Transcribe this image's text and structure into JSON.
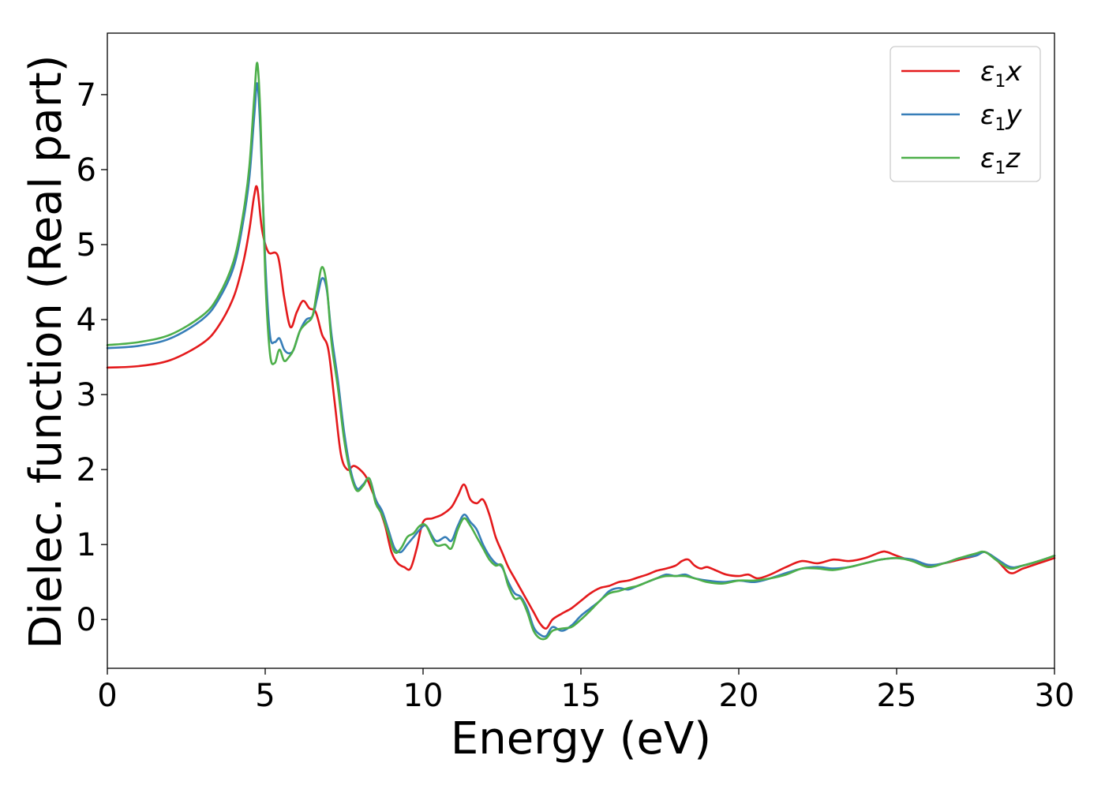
{
  "chart_data": {
    "type": "line",
    "title": "",
    "xlabel": "Energy (eV)",
    "ylabel": "Dielec. function (Real part)",
    "xlim": [
      0,
      30
    ],
    "ylim": [
      -0.65,
      7.82
    ],
    "xticks": [
      0,
      5,
      10,
      15,
      20,
      25,
      30
    ],
    "yticks": [
      0,
      1,
      2,
      3,
      4,
      5,
      6,
      7
    ],
    "grid": false,
    "legend_position": "top-right",
    "series": [
      {
        "name": "ε1x",
        "legend": {
          "symbol": "ε",
          "sub": "1",
          "var": "x"
        },
        "color": "#e41a1c",
        "x": [
          0,
          1,
          2,
          3,
          3.5,
          4,
          4.3,
          4.5,
          4.65,
          4.75,
          4.9,
          5.1,
          5.4,
          5.6,
          5.8,
          6.0,
          6.2,
          6.4,
          6.6,
          6.8,
          7.0,
          7.2,
          7.4,
          7.6,
          7.8,
          8.0,
          8.2,
          8.4,
          8.6,
          8.8,
          9.0,
          9.2,
          9.4,
          9.6,
          9.8,
          10.0,
          10.3,
          10.6,
          10.9,
          11.1,
          11.3,
          11.5,
          11.7,
          11.9,
          12.1,
          12.3,
          12.5,
          12.7,
          12.9,
          13.1,
          13.3,
          13.5,
          13.7,
          13.9,
          14.1,
          14.4,
          14.7,
          15.0,
          15.3,
          15.6,
          15.9,
          16.2,
          16.5,
          16.8,
          17.1,
          17.4,
          17.7,
          18.0,
          18.2,
          18.4,
          18.6,
          18.8,
          19.0,
          19.3,
          19.6,
          20.0,
          20.3,
          20.6,
          21.0,
          21.5,
          22.0,
          22.5,
          23.0,
          23.5,
          24.0,
          24.5,
          24.7,
          25.0,
          25.5,
          26.0,
          26.5,
          27.0,
          27.5,
          27.8,
          28.2,
          28.6,
          29.0,
          29.5,
          30.0
        ],
        "values": [
          3.36,
          3.38,
          3.46,
          3.68,
          3.9,
          4.3,
          4.75,
          5.2,
          5.65,
          5.75,
          5.2,
          4.9,
          4.85,
          4.3,
          3.9,
          4.1,
          4.25,
          4.15,
          4.1,
          3.8,
          3.6,
          2.9,
          2.2,
          2.0,
          2.05,
          2.0,
          1.9,
          1.7,
          1.5,
          1.25,
          0.9,
          0.75,
          0.7,
          0.68,
          0.95,
          1.3,
          1.35,
          1.4,
          1.5,
          1.65,
          1.8,
          1.6,
          1.55,
          1.6,
          1.4,
          1.1,
          0.9,
          0.7,
          0.55,
          0.4,
          0.25,
          0.1,
          -0.05,
          -0.12,
          0.0,
          0.08,
          0.15,
          0.25,
          0.35,
          0.42,
          0.45,
          0.5,
          0.52,
          0.56,
          0.6,
          0.65,
          0.68,
          0.72,
          0.78,
          0.8,
          0.72,
          0.68,
          0.7,
          0.65,
          0.6,
          0.58,
          0.6,
          0.55,
          0.6,
          0.7,
          0.78,
          0.75,
          0.8,
          0.78,
          0.82,
          0.9,
          0.9,
          0.85,
          0.78,
          0.72,
          0.75,
          0.8,
          0.85,
          0.9,
          0.78,
          0.62,
          0.68,
          0.75,
          0.82
        ]
      },
      {
        "name": "ε1y",
        "legend": {
          "symbol": "ε",
          "sub": "1",
          "var": "y"
        },
        "color": "#377eb8",
        "x": [
          0,
          1,
          2,
          3,
          3.5,
          4,
          4.3,
          4.5,
          4.65,
          4.75,
          4.85,
          5.0,
          5.15,
          5.3,
          5.45,
          5.6,
          5.75,
          5.9,
          6.1,
          6.3,
          6.5,
          6.65,
          6.8,
          6.95,
          7.1,
          7.3,
          7.5,
          7.7,
          7.9,
          8.1,
          8.3,
          8.5,
          8.7,
          8.9,
          9.1,
          9.3,
          9.5,
          9.7,
          9.9,
          10.1,
          10.4,
          10.7,
          10.9,
          11.1,
          11.3,
          11.5,
          11.7,
          11.9,
          12.1,
          12.3,
          12.5,
          12.7,
          12.9,
          13.1,
          13.3,
          13.5,
          13.7,
          13.9,
          14.1,
          14.4,
          14.7,
          15.0,
          15.3,
          15.6,
          15.9,
          16.2,
          16.5,
          16.8,
          17.1,
          17.4,
          17.7,
          18.0,
          18.3,
          18.6,
          19.0,
          19.5,
          20.0,
          20.5,
          21.0,
          21.5,
          22.0,
          22.5,
          23.0,
          23.5,
          24.0,
          24.5,
          25.0,
          25.5,
          26.0,
          26.5,
          27.0,
          27.5,
          27.8,
          28.2,
          28.6,
          29.0,
          29.5,
          30.0
        ],
        "values": [
          3.62,
          3.65,
          3.75,
          4.0,
          4.25,
          4.7,
          5.3,
          5.9,
          6.7,
          7.15,
          6.5,
          4.8,
          3.8,
          3.7,
          3.75,
          3.6,
          3.55,
          3.6,
          3.85,
          4.0,
          4.05,
          4.3,
          4.55,
          4.4,
          3.8,
          3.2,
          2.5,
          2.0,
          1.75,
          1.8,
          1.88,
          1.6,
          1.45,
          1.2,
          0.95,
          0.9,
          1.0,
          1.1,
          1.2,
          1.25,
          1.05,
          1.1,
          1.05,
          1.25,
          1.4,
          1.3,
          1.2,
          1.0,
          0.85,
          0.75,
          0.7,
          0.5,
          0.35,
          0.3,
          0.15,
          -0.1,
          -0.2,
          -0.22,
          -0.1,
          -0.15,
          -0.08,
          0.05,
          0.15,
          0.25,
          0.38,
          0.42,
          0.4,
          0.45,
          0.5,
          0.55,
          0.6,
          0.58,
          0.6,
          0.55,
          0.52,
          0.5,
          0.52,
          0.5,
          0.55,
          0.62,
          0.68,
          0.7,
          0.68,
          0.7,
          0.75,
          0.8,
          0.82,
          0.8,
          0.73,
          0.75,
          0.82,
          0.85,
          0.9,
          0.8,
          0.7,
          0.72,
          0.78,
          0.85
        ]
      },
      {
        "name": "ε1z",
        "legend": {
          "symbol": "ε",
          "sub": "1",
          "var": "z"
        },
        "color": "#4daf4a",
        "x": [
          0,
          1,
          2,
          3,
          3.5,
          4,
          4.3,
          4.5,
          4.65,
          4.75,
          4.85,
          5.0,
          5.15,
          5.3,
          5.45,
          5.6,
          5.75,
          5.9,
          6.1,
          6.3,
          6.5,
          6.65,
          6.8,
          6.95,
          7.1,
          7.3,
          7.5,
          7.7,
          7.9,
          8.1,
          8.3,
          8.5,
          8.7,
          8.9,
          9.1,
          9.3,
          9.5,
          9.7,
          9.9,
          10.1,
          10.4,
          10.7,
          10.9,
          11.1,
          11.3,
          11.5,
          11.7,
          11.9,
          12.1,
          12.3,
          12.5,
          12.7,
          12.9,
          13.1,
          13.3,
          13.5,
          13.7,
          13.9,
          14.1,
          14.4,
          14.7,
          15.0,
          15.3,
          15.6,
          15.9,
          16.2,
          16.5,
          16.8,
          17.1,
          17.4,
          17.7,
          18.0,
          18.3,
          18.6,
          19.0,
          19.5,
          20.0,
          20.5,
          21.0,
          21.5,
          22.0,
          22.5,
          23.0,
          23.5,
          24.0,
          24.5,
          25.0,
          25.5,
          26.0,
          26.5,
          27.0,
          27.5,
          27.8,
          28.2,
          28.6,
          29.0,
          29.5,
          30.0
        ],
        "values": [
          3.66,
          3.7,
          3.8,
          4.05,
          4.3,
          4.78,
          5.4,
          6.05,
          6.95,
          7.42,
          6.7,
          4.6,
          3.55,
          3.42,
          3.6,
          3.45,
          3.5,
          3.6,
          3.85,
          3.95,
          4.05,
          4.4,
          4.7,
          4.45,
          3.7,
          3.1,
          2.4,
          1.95,
          1.72,
          1.78,
          1.88,
          1.55,
          1.4,
          1.15,
          0.9,
          0.95,
          1.1,
          1.15,
          1.25,
          1.25,
          1.0,
          1.0,
          0.95,
          1.2,
          1.35,
          1.25,
          1.1,
          0.95,
          0.8,
          0.72,
          0.72,
          0.45,
          0.28,
          0.28,
          0.1,
          -0.15,
          -0.25,
          -0.25,
          -0.15,
          -0.12,
          -0.1,
          0.0,
          0.12,
          0.25,
          0.35,
          0.38,
          0.42,
          0.45,
          0.5,
          0.55,
          0.58,
          0.58,
          0.58,
          0.55,
          0.5,
          0.48,
          0.52,
          0.52,
          0.55,
          0.6,
          0.68,
          0.68,
          0.66,
          0.7,
          0.75,
          0.8,
          0.82,
          0.78,
          0.7,
          0.75,
          0.82,
          0.88,
          0.9,
          0.78,
          0.68,
          0.72,
          0.78,
          0.85
        ]
      }
    ]
  }
}
